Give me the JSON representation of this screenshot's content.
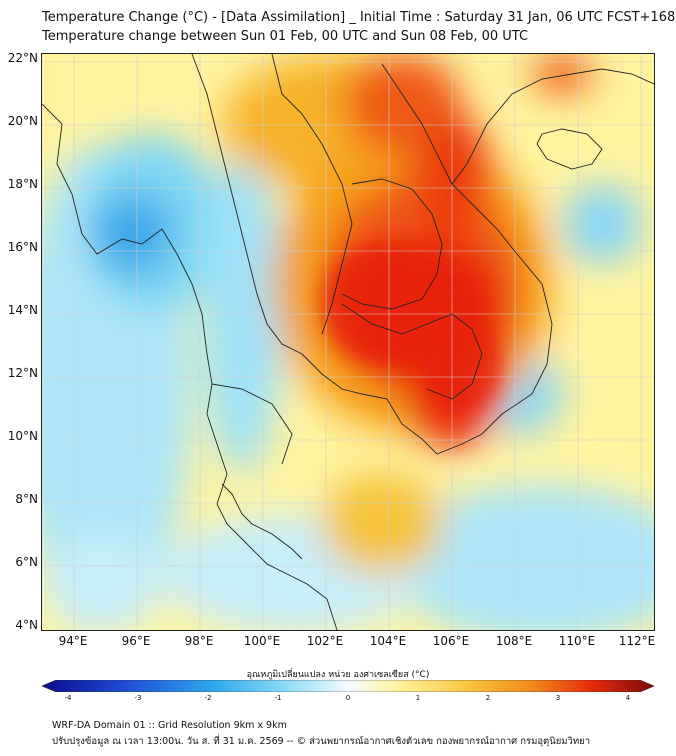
{
  "title": {
    "line1": "Temperature Change (°C) - [Data Assimilation] _ Initial Time : Saturday 31 Jan, 06 UTC FCST+168",
    "line2": "Temperature change between Sun 01 Feb, 00 UTC and Sun 08 Feb, 00 UTC"
  },
  "map": {
    "lat_labels": [
      "22°N",
      "20°N",
      "18°N",
      "16°N",
      "14°N",
      "12°N",
      "10°N",
      "8°N",
      "6°N",
      "4°N"
    ],
    "lon_labels": [
      "94°E",
      "96°E",
      "98°E",
      "100°E",
      "102°E",
      "104°E",
      "106°E",
      "108°E",
      "110°E",
      "112°E"
    ]
  },
  "colorbar": {
    "title": "อุณหภูมิเปลี่ยนแปลง หน่วย องศาเซลเซียส (°C)",
    "ticks": [
      "-4",
      "-3",
      "-2",
      "-1",
      "0",
      "1",
      "2",
      "3",
      "4"
    ],
    "range": [
      -4,
      4
    ]
  },
  "footer": {
    "line1": "WRF-DA Domain 01 :: Grid Resolution 9km x 9km",
    "line2": "ปรับปรุงข้อมูล ณ เวลา 13:00น. วัน ส. ที่ 31 ม.ค. 2569 -- © ส่วนพยากรณ์อากาศเชิงตัวเลข กองพยากรณ์อากาศ กรมอุตุนิยมวิทยา"
  },
  "colors": {
    "warm_max": "#e8200a",
    "warm_mid": "#f7931e",
    "neutral": "#fff7a8",
    "cool_light": "#cdeefb",
    "cool_mid": "#52c8ee",
    "cool_dark": "#1f6fd6"
  }
}
